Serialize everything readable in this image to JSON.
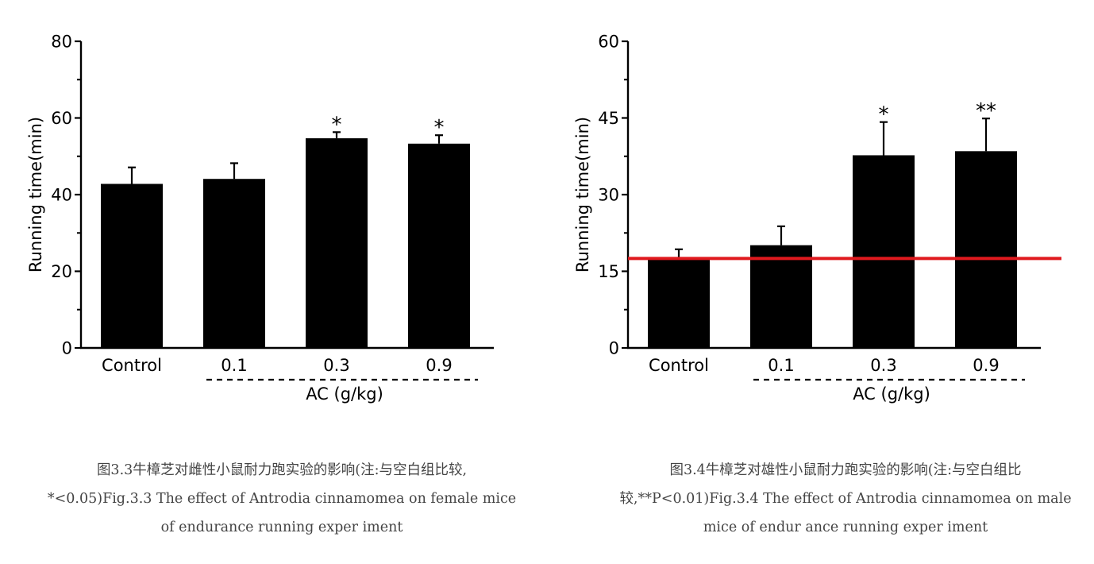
{
  "chart_data": [
    {
      "type": "bar",
      "categories": [
        "Control",
        "0.1",
        "0.3",
        "0.9"
      ],
      "values": [
        42.8,
        44.1,
        54.7,
        53.3
      ],
      "errors": [
        4.3,
        4.1,
        1.6,
        2.2
      ],
      "significance": [
        "",
        "",
        "*",
        "*"
      ],
      "ylabel": "Running time(min)",
      "xlabel": "AC (g/kg)",
      "ylim": [
        0,
        80
      ],
      "yticks": [
        "0",
        "20",
        "40",
        "60",
        "80"
      ],
      "bar_color": "#000000",
      "caption": [
        "图3.3牛樟芝对雌性小鼠耐力跑实验的影响(注:与空白组比较,",
        "*<0.05)Fig.3.3 The effect of Antrodia cinnamomea on female mice",
        "of endurance running exper iment"
      ]
    },
    {
      "type": "bar",
      "categories": [
        "Control",
        "0.1",
        "0.3",
        "0.9"
      ],
      "values": [
        17.6,
        20.1,
        37.7,
        38.5
      ],
      "errors": [
        1.7,
        3.7,
        6.5,
        6.4
      ],
      "significance": [
        "",
        "",
        "*",
        "**"
      ],
      "ylabel": "Running time(min)",
      "xlabel": "AC (g/kg)",
      "ylim": [
        0,
        60
      ],
      "yticks": [
        "0",
        "15",
        "30",
        "45",
        "60"
      ],
      "reference_line": 17.5,
      "reference_color": "#e0191e",
      "bar_color": "#000000",
      "caption": [
        "图3.4牛樟芝对雄性小鼠耐力跑实验的影响(注:与空白组比",
        "较,**P<0.01)Fig.3.4 The effect of Antrodia cinnamomea on male",
        "mice of endur ance running exper iment"
      ]
    }
  ]
}
